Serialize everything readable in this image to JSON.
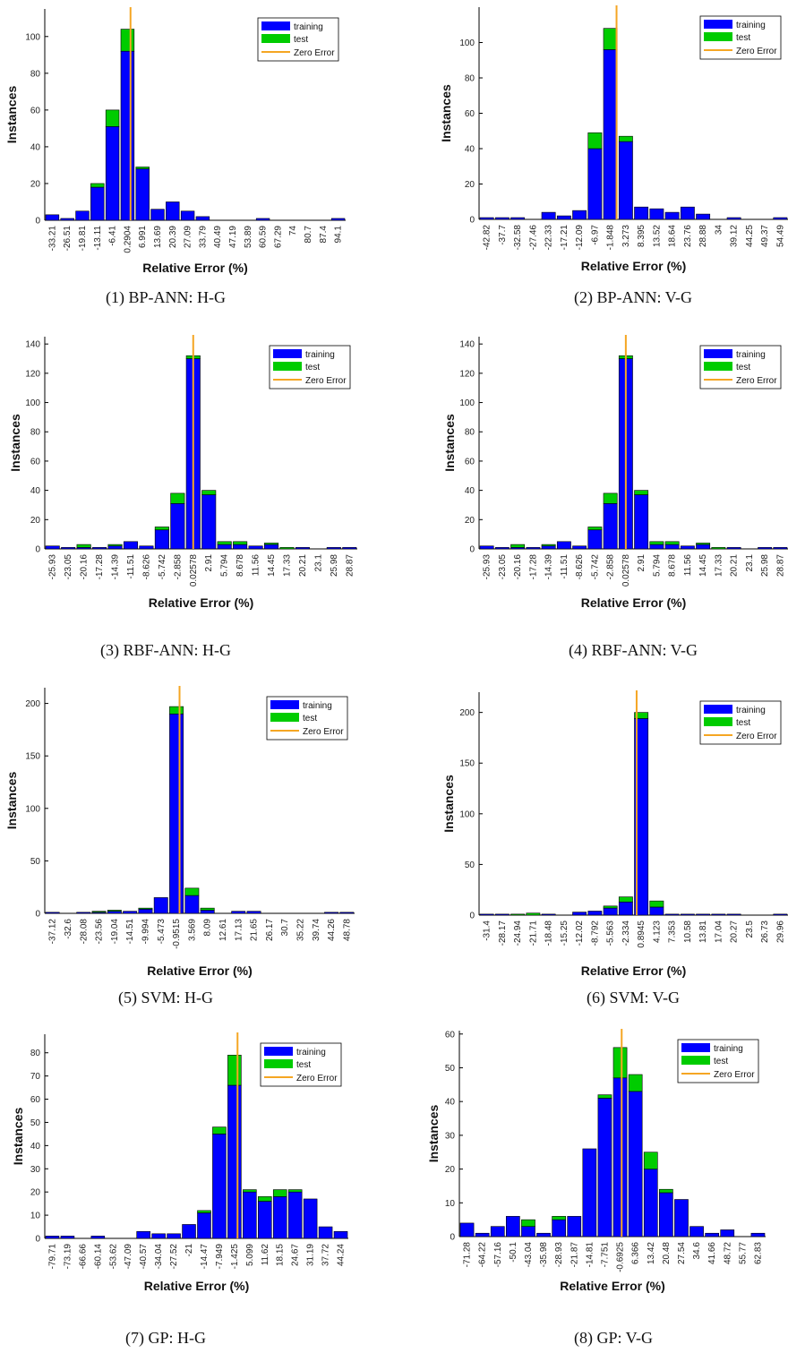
{
  "legend": {
    "training": "training",
    "test": "test",
    "zero": "Zero Error"
  },
  "colors": {
    "training": "#0000ff",
    "test": "#00cc00",
    "zero_line": "#f5a623",
    "edge": "#000000"
  },
  "chart_data": [
    {
      "type": "bar",
      "caption": "(1) BP-ANN: H-G",
      "xlabel": "Relative Error (%)",
      "ylabel": "Instances",
      "ylim": [
        0,
        115
      ],
      "yticks": [
        0,
        20,
        40,
        60,
        80,
        100
      ],
      "categories": [
        "-33.21",
        "-26.51",
        "-19.81",
        "-13.11",
        "-6.41",
        "0.2904",
        "6.991",
        "13.69",
        "20.39",
        "27.09",
        "33.79",
        "40.49",
        "47.19",
        "53.89",
        "60.59",
        "67.29",
        "74",
        "80.7",
        "87.4",
        "94.1"
      ],
      "series": [
        {
          "name": "training",
          "values": [
            3,
            1,
            5,
            18,
            51,
            92,
            28,
            6,
            10,
            5,
            2,
            0,
            0,
            0,
            1,
            0,
            0,
            0,
            0,
            1
          ]
        },
        {
          "name": "test",
          "values": [
            0,
            0,
            0,
            2,
            9,
            12,
            1,
            0,
            0,
            0,
            0,
            0,
            0,
            0,
            0,
            0,
            0,
            0,
            0,
            0
          ]
        }
      ],
      "zero_index": 5.2,
      "legend_position": "top-right"
    },
    {
      "type": "bar",
      "caption": "(2) BP-ANN: V-G",
      "xlabel": "Relative Error (%)",
      "ylabel": "Instances",
      "ylim": [
        0,
        120
      ],
      "yticks": [
        0,
        20,
        40,
        60,
        80,
        100
      ],
      "categories": [
        "-42.82",
        "-37.7",
        "-32.58",
        "-27.46",
        "-22.33",
        "-17.21",
        "-12.09",
        "-6.97",
        "-1.848",
        "3.273",
        "8.395",
        "13.52",
        "18.64",
        "23.76",
        "28.88",
        "34",
        "39.12",
        "44.25",
        "49.37",
        "54.49"
      ],
      "series": [
        {
          "name": "training",
          "values": [
            1,
            1,
            1,
            0,
            4,
            2,
            5,
            40,
            96,
            44,
            7,
            6,
            4,
            7,
            3,
            0,
            1,
            0,
            0,
            1
          ]
        },
        {
          "name": "test",
          "values": [
            0,
            0,
            0,
            0,
            0,
            0,
            0,
            9,
            12,
            3,
            0,
            0,
            0,
            0,
            0,
            0,
            0,
            0,
            0,
            0
          ]
        }
      ],
      "zero_index": 8.4,
      "legend_position": "top-right"
    },
    {
      "type": "bar",
      "caption": "(3) RBF-ANN:  H-G",
      "xlabel": "Relative Error (%)",
      "ylabel": "Instances",
      "ylim": [
        0,
        145
      ],
      "yticks": [
        0,
        20,
        40,
        60,
        80,
        100,
        120,
        140
      ],
      "categories": [
        "-25.93",
        "-23.05",
        "-20.16",
        "-17.28",
        "-14.39",
        "-11.51",
        "-8.626",
        "-5.742",
        "-2.858",
        "0.02578",
        "2.91",
        "5.794",
        "8.678",
        "11.56",
        "14.45",
        "17.33",
        "20.21",
        "23.1",
        "25.98",
        "28.87"
      ],
      "series": [
        {
          "name": "training",
          "values": [
            2,
            1,
            1,
            1,
            2,
            5,
            2,
            13,
            31,
            130,
            37,
            3,
            3,
            2,
            3,
            0,
            1,
            0,
            1,
            1
          ]
        },
        {
          "name": "test",
          "values": [
            0,
            0,
            2,
            0,
            1,
            0,
            0,
            2,
            7,
            2,
            3,
            2,
            2,
            0,
            1,
            1,
            0,
            0,
            0,
            0
          ]
        }
      ],
      "zero_index": 9.0,
      "legend_position": "top-right"
    },
    {
      "type": "bar",
      "caption": "(4) RBF-ANN: V-G",
      "xlabel": "Relative Error (%)",
      "ylabel": "Instances",
      "ylim": [
        0,
        145
      ],
      "yticks": [
        0,
        20,
        40,
        60,
        80,
        100,
        120,
        140
      ],
      "categories": [
        "-25.93",
        "-23.05",
        "-20.16",
        "-17.28",
        "-14.39",
        "-11.51",
        "-8.626",
        "-5.742",
        "-2.858",
        "0.02578",
        "2.91",
        "5.794",
        "8.678",
        "11.56",
        "14.45",
        "17.33",
        "20.21",
        "23.1",
        "25.98",
        "28.87"
      ],
      "series": [
        {
          "name": "training",
          "values": [
            2,
            1,
            1,
            1,
            2,
            5,
            2,
            13,
            31,
            130,
            37,
            3,
            3,
            2,
            3,
            0,
            1,
            0,
            1,
            1
          ]
        },
        {
          "name": "test",
          "values": [
            0,
            0,
            2,
            0,
            1,
            0,
            0,
            2,
            7,
            2,
            3,
            2,
            2,
            0,
            1,
            1,
            0,
            0,
            0,
            0
          ]
        }
      ],
      "zero_index": 9.0,
      "legend_position": "top-right"
    },
    {
      "type": "bar",
      "caption": "(5) SVM: H-G",
      "xlabel": "Relative Error (%)",
      "ylabel": "Instances",
      "ylim": [
        0,
        215
      ],
      "yticks": [
        0,
        50,
        100,
        150,
        200
      ],
      "categories": [
        "-37.12",
        "-32.6",
        "-28.08",
        "-23.56",
        "-19.04",
        "-14.51",
        "-9.994",
        "-5.473",
        "-0.9515",
        "3.569",
        "8.09",
        "12.61",
        "17.13",
        "21.65",
        "26.17",
        "30.7",
        "35.22",
        "39.74",
        "44.26",
        "48.78"
      ],
      "series": [
        {
          "name": "training",
          "values": [
            1,
            0,
            1,
            1,
            2,
            2,
            4,
            15,
            190,
            17,
            3,
            0,
            2,
            2,
            0,
            0,
            0,
            0,
            1,
            1
          ]
        },
        {
          "name": "test",
          "values": [
            0,
            0,
            0,
            1,
            1,
            0,
            1,
            0,
            7,
            7,
            2,
            0,
            0,
            0,
            0,
            0,
            0,
            0,
            0,
            0
          ]
        }
      ],
      "zero_index": 8.2,
      "legend_position": "top-right"
    },
    {
      "type": "bar",
      "caption": "(6) SVM: V-G",
      "xlabel": "Relative Error (%)",
      "ylabel": "Instances",
      "ylim": [
        0,
        220
      ],
      "yticks": [
        0,
        50,
        100,
        150,
        200
      ],
      "categories": [
        "-31.4",
        "-28.17",
        "-24.94",
        "-21.71",
        "-18.48",
        "-15.25",
        "-12.02",
        "-8.792",
        "-5.563",
        "-2.334",
        "0.8945",
        "4.123",
        "7.353",
        "10.58",
        "13.81",
        "17.04",
        "20.27",
        "23.5",
        "26.73",
        "29.96"
      ],
      "series": [
        {
          "name": "training",
          "values": [
            1,
            1,
            0,
            0,
            1,
            0,
            3,
            4,
            7,
            13,
            194,
            8,
            1,
            1,
            1,
            1,
            1,
            0,
            0,
            1
          ]
        },
        {
          "name": "test",
          "values": [
            0,
            0,
            1,
            2,
            0,
            0,
            0,
            0,
            2,
            5,
            6,
            6,
            0,
            0,
            0,
            0,
            0,
            0,
            0,
            0
          ]
        }
      ],
      "zero_index": 9.7,
      "legend_position": "top-right"
    },
    {
      "type": "bar",
      "caption": "(7) GP: H-G",
      "xlabel": "Relative Error (%)",
      "ylabel": "Instances",
      "ylim": [
        0,
        88
      ],
      "yticks": [
        0,
        10,
        20,
        30,
        40,
        50,
        60,
        70,
        80
      ],
      "categories": [
        "-79.71",
        "-73.19",
        "-66.66",
        "-60.14",
        "-53.62",
        "-47.09",
        "-40.57",
        "-34.04",
        "-27.52",
        "-21",
        "-14.47",
        "-7.949",
        "-1.425",
        "5.099",
        "11.62",
        "18.15",
        "24.67",
        "31.19",
        "37.72",
        "44.24"
      ],
      "series": [
        {
          "name": "training",
          "values": [
            1,
            1,
            0,
            1,
            0,
            0,
            3,
            2,
            2,
            6,
            11,
            45,
            66,
            20,
            16,
            18,
            20,
            17,
            5,
            3
          ]
        },
        {
          "name": "test",
          "values": [
            0,
            0,
            0,
            0,
            0,
            0,
            0,
            0,
            0,
            0,
            1,
            3,
            13,
            1,
            2,
            3,
            1,
            0,
            0,
            0
          ]
        }
      ],
      "zero_index": 12.2,
      "legend_position": "top-right"
    },
    {
      "type": "bar",
      "caption": "(8) GP: V-G",
      "xlabel": "Relative Error (%)",
      "ylabel": "Instances",
      "ylim": [
        0,
        61
      ],
      "yticks": [
        0,
        10,
        20,
        30,
        40,
        50,
        60
      ],
      "categories": [
        "-71.28",
        "-64.22",
        "-57.16",
        "-50.1",
        "-43.04",
        "-35.98",
        "-28.93",
        "-21.87",
        "-14.81",
        "-7.751",
        "-0.6925",
        "6.366",
        "13.42",
        "20.48",
        "27.54",
        "34.6",
        "41.66",
        "48.72",
        "55.77",
        "62.83"
      ],
      "series": [
        {
          "name": "training",
          "values": [
            4,
            1,
            3,
            6,
            3,
            1,
            5,
            6,
            26,
            41,
            47,
            43,
            20,
            13,
            11,
            3,
            1,
            2,
            0,
            1
          ]
        },
        {
          "name": "test",
          "values": [
            0,
            0,
            0,
            0,
            2,
            0,
            1,
            0,
            0,
            1,
            9,
            5,
            5,
            1,
            0,
            0,
            0,
            0,
            0,
            0
          ]
        }
      ],
      "zero_index": 10.1,
      "legend_position": "top-right"
    }
  ]
}
